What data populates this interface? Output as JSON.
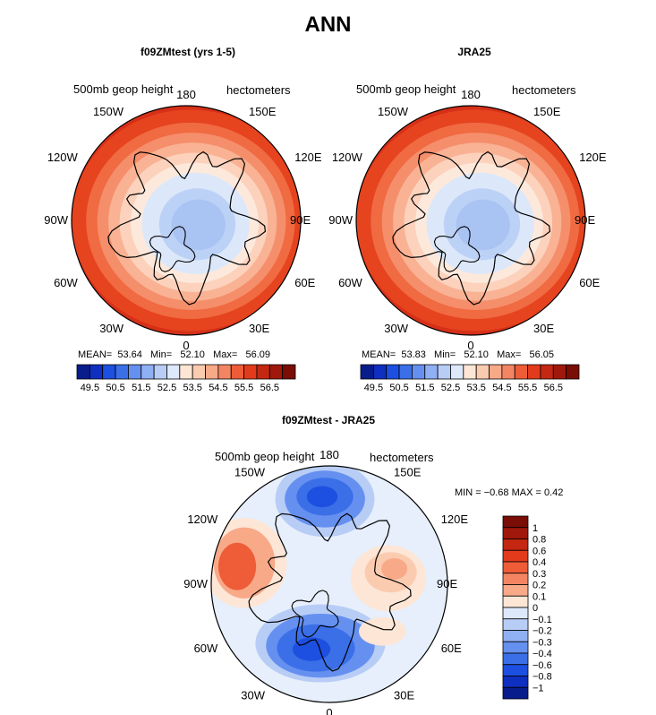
{
  "main_title": "ANN",
  "panels": [
    {
      "title": "f09ZMtest (yrs 1-5)",
      "subtitle_left": "500mb  geop  height",
      "subtitle_right": "hectometers",
      "mean": "53.64",
      "min": "52.10",
      "max": "56.09",
      "mean_label": "MEAN=",
      "min_label": "Min=",
      "max_label": "Max="
    },
    {
      "title": "JRA25",
      "subtitle_left": "500mb  geop  height",
      "subtitle_right": "hectometers",
      "mean": "53.83",
      "min": "52.10",
      "max": "56.05",
      "mean_label": "MEAN=",
      "min_label": "Min=",
      "max_label": "Max="
    },
    {
      "title": "f09ZMtest - JRA25",
      "subtitle_left": "500mb  geop  height",
      "subtitle_right": "hectometers",
      "min_max_text": "MIN =   −0.68  MAX =    0.42"
    }
  ],
  "lon_labels": [
    "180",
    "150E",
    "120E",
    "90E",
    "60E",
    "30E",
    "0",
    "30W",
    "60W",
    "90W",
    "120W",
    "150W"
  ],
  "colorbar_top": {
    "labels": [
      "49.5",
      "50.5",
      "51.5",
      "52.5",
      "53.5",
      "54.5",
      "55.5",
      "56.5"
    ],
    "colors": [
      "#081d8c",
      "#0f2fc0",
      "#1d4fe0",
      "#3a6fe8",
      "#6590f0",
      "#90b0f4",
      "#b8cdf6",
      "#dde8fa",
      "#fde6d6",
      "#fbcbb0",
      "#f8a988",
      "#f48563",
      "#ee5d38",
      "#e23b1c",
      "#c42712",
      "#a0180b",
      "#7a0d06"
    ]
  },
  "colorbar_diff": {
    "labels": [
      "1",
      "0.8",
      "0.6",
      "0.4",
      "0.3",
      "0.2",
      "0.1",
      "0",
      "−0.1",
      "−0.2",
      "−0.3",
      "−0.4",
      "−0.6",
      "−0.8",
      "−1"
    ],
    "colors": [
      "#7a0d06",
      "#a0180b",
      "#c42712",
      "#e23b1c",
      "#ee5d38",
      "#f48563",
      "#f8a988",
      "#fde6d6",
      "#dde8fa",
      "#b8cdf6",
      "#90b0f4",
      "#6590f0",
      "#3a6fe8",
      "#1d4fe0",
      "#0f2fc0",
      "#081d8c"
    ]
  }
}
